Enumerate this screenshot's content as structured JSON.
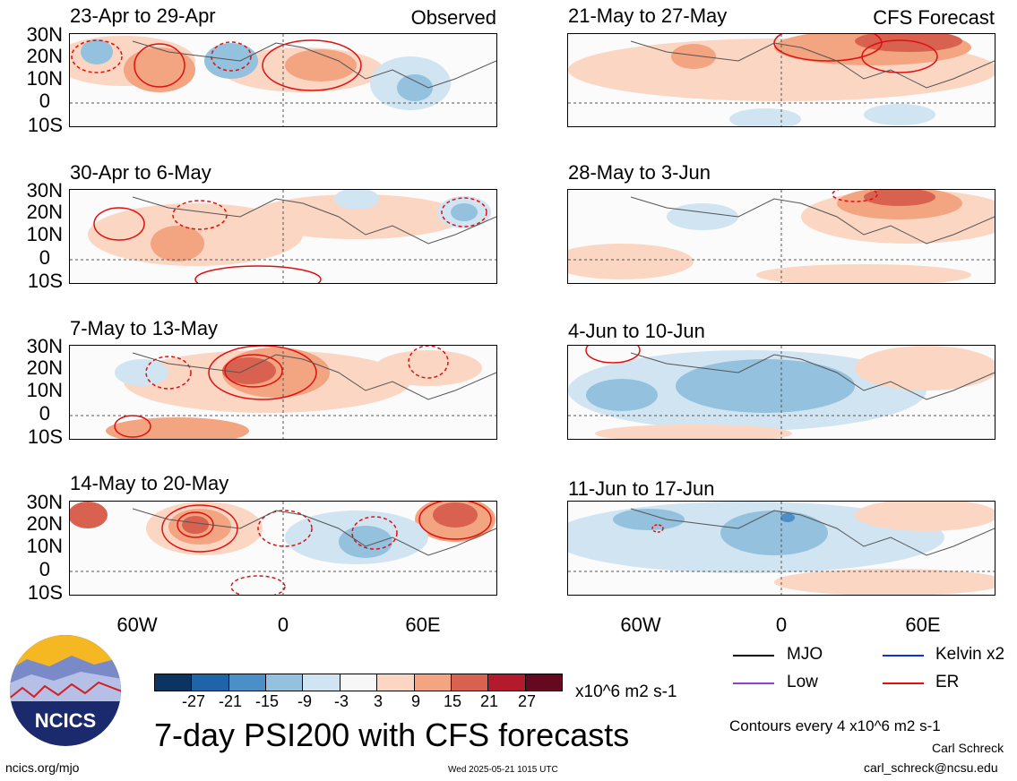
{
  "panels": [
    {
      "title": "23-Apr to 29-Apr",
      "tag": "Observed"
    },
    {
      "title": "21-May to 27-May",
      "tag": "CFS Forecast"
    },
    {
      "title": "30-Apr to 6-May",
      "tag": ""
    },
    {
      "title": "28-May to 3-Jun",
      "tag": ""
    },
    {
      "title": "7-May to 13-May",
      "tag": ""
    },
    {
      "title": "4-Jun to 10-Jun",
      "tag": ""
    },
    {
      "title": "14-May to 20-May",
      "tag": ""
    },
    {
      "title": "11-Jun to 17-Jun",
      "tag": ""
    }
  ],
  "lat_labels": [
    "30N",
    "20N",
    "10N",
    "0",
    "10S"
  ],
  "lon_labels": [
    "60W",
    "0",
    "60E"
  ],
  "colorbar": {
    "colors": [
      "#0b3560",
      "#1f63a8",
      "#4a8fc8",
      "#93c1de",
      "#d0e4f1",
      "#f7f7f7",
      "#fbd6c3",
      "#f3a481",
      "#d8614f",
      "#b31a2b",
      "#660820"
    ],
    "labels": [
      "-27",
      "-21",
      "-15",
      "-9",
      "-3",
      "3",
      "9",
      "15",
      "21",
      "27"
    ],
    "units": "x10^6 m2 s-1"
  },
  "main_title": "7-day PSI200 with CFS forecasts",
  "legend": [
    {
      "label": "MJO",
      "color": "#000000"
    },
    {
      "label": "Kelvin x2",
      "color": "#1030e0"
    },
    {
      "label": "Low",
      "color": "#9040d0"
    },
    {
      "label": "ER",
      "color": "#e01010"
    }
  ],
  "contour_note": "Contours every 4 x10^6 m2 s-1",
  "author": "Carl Schreck",
  "email": "carl_schreck@ncsu.edu",
  "site": "ncics.org/mjo",
  "timestamp": "Wed 2025-05-21 1015 UTC",
  "logo_text": "NCICS"
}
